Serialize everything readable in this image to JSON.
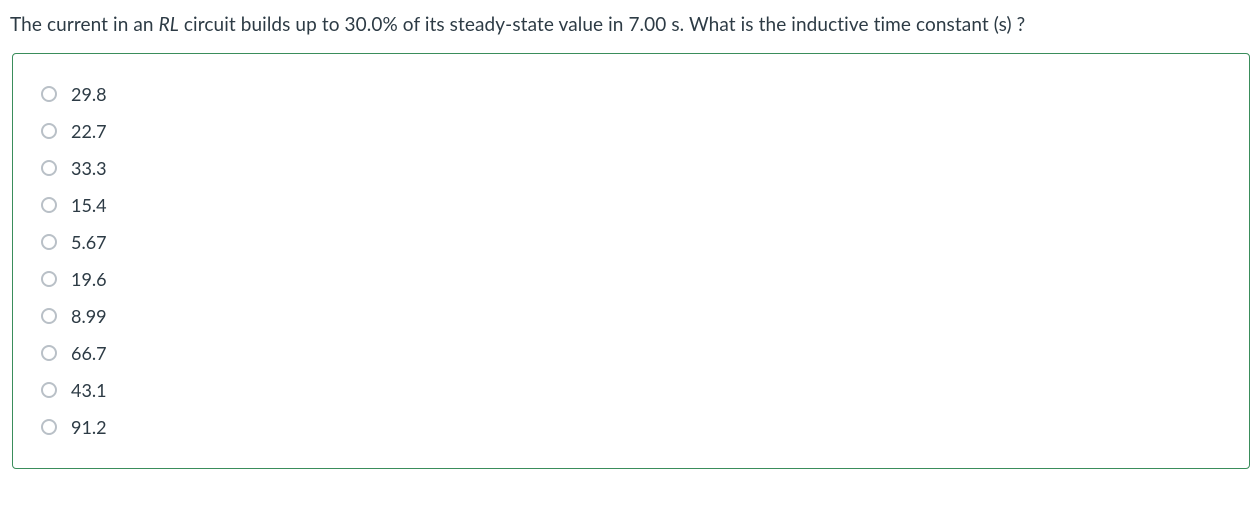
{
  "question": {
    "prefix": "The current in an ",
    "italic": "RL",
    "suffix": " circuit builds up to 30.0% of its steady-state value in 7.00 s. What is the inductive time constant (s) ?"
  },
  "answers": [
    "29.8",
    "22.7",
    "33.3",
    "15.4",
    "5.67",
    "19.6",
    "8.99",
    "66.7",
    "43.1",
    "91.2"
  ],
  "colors": {
    "text": "#2d3b45",
    "border": "#3a8d5b",
    "radio_border": "#b9c0c7",
    "background": "#ffffff"
  }
}
